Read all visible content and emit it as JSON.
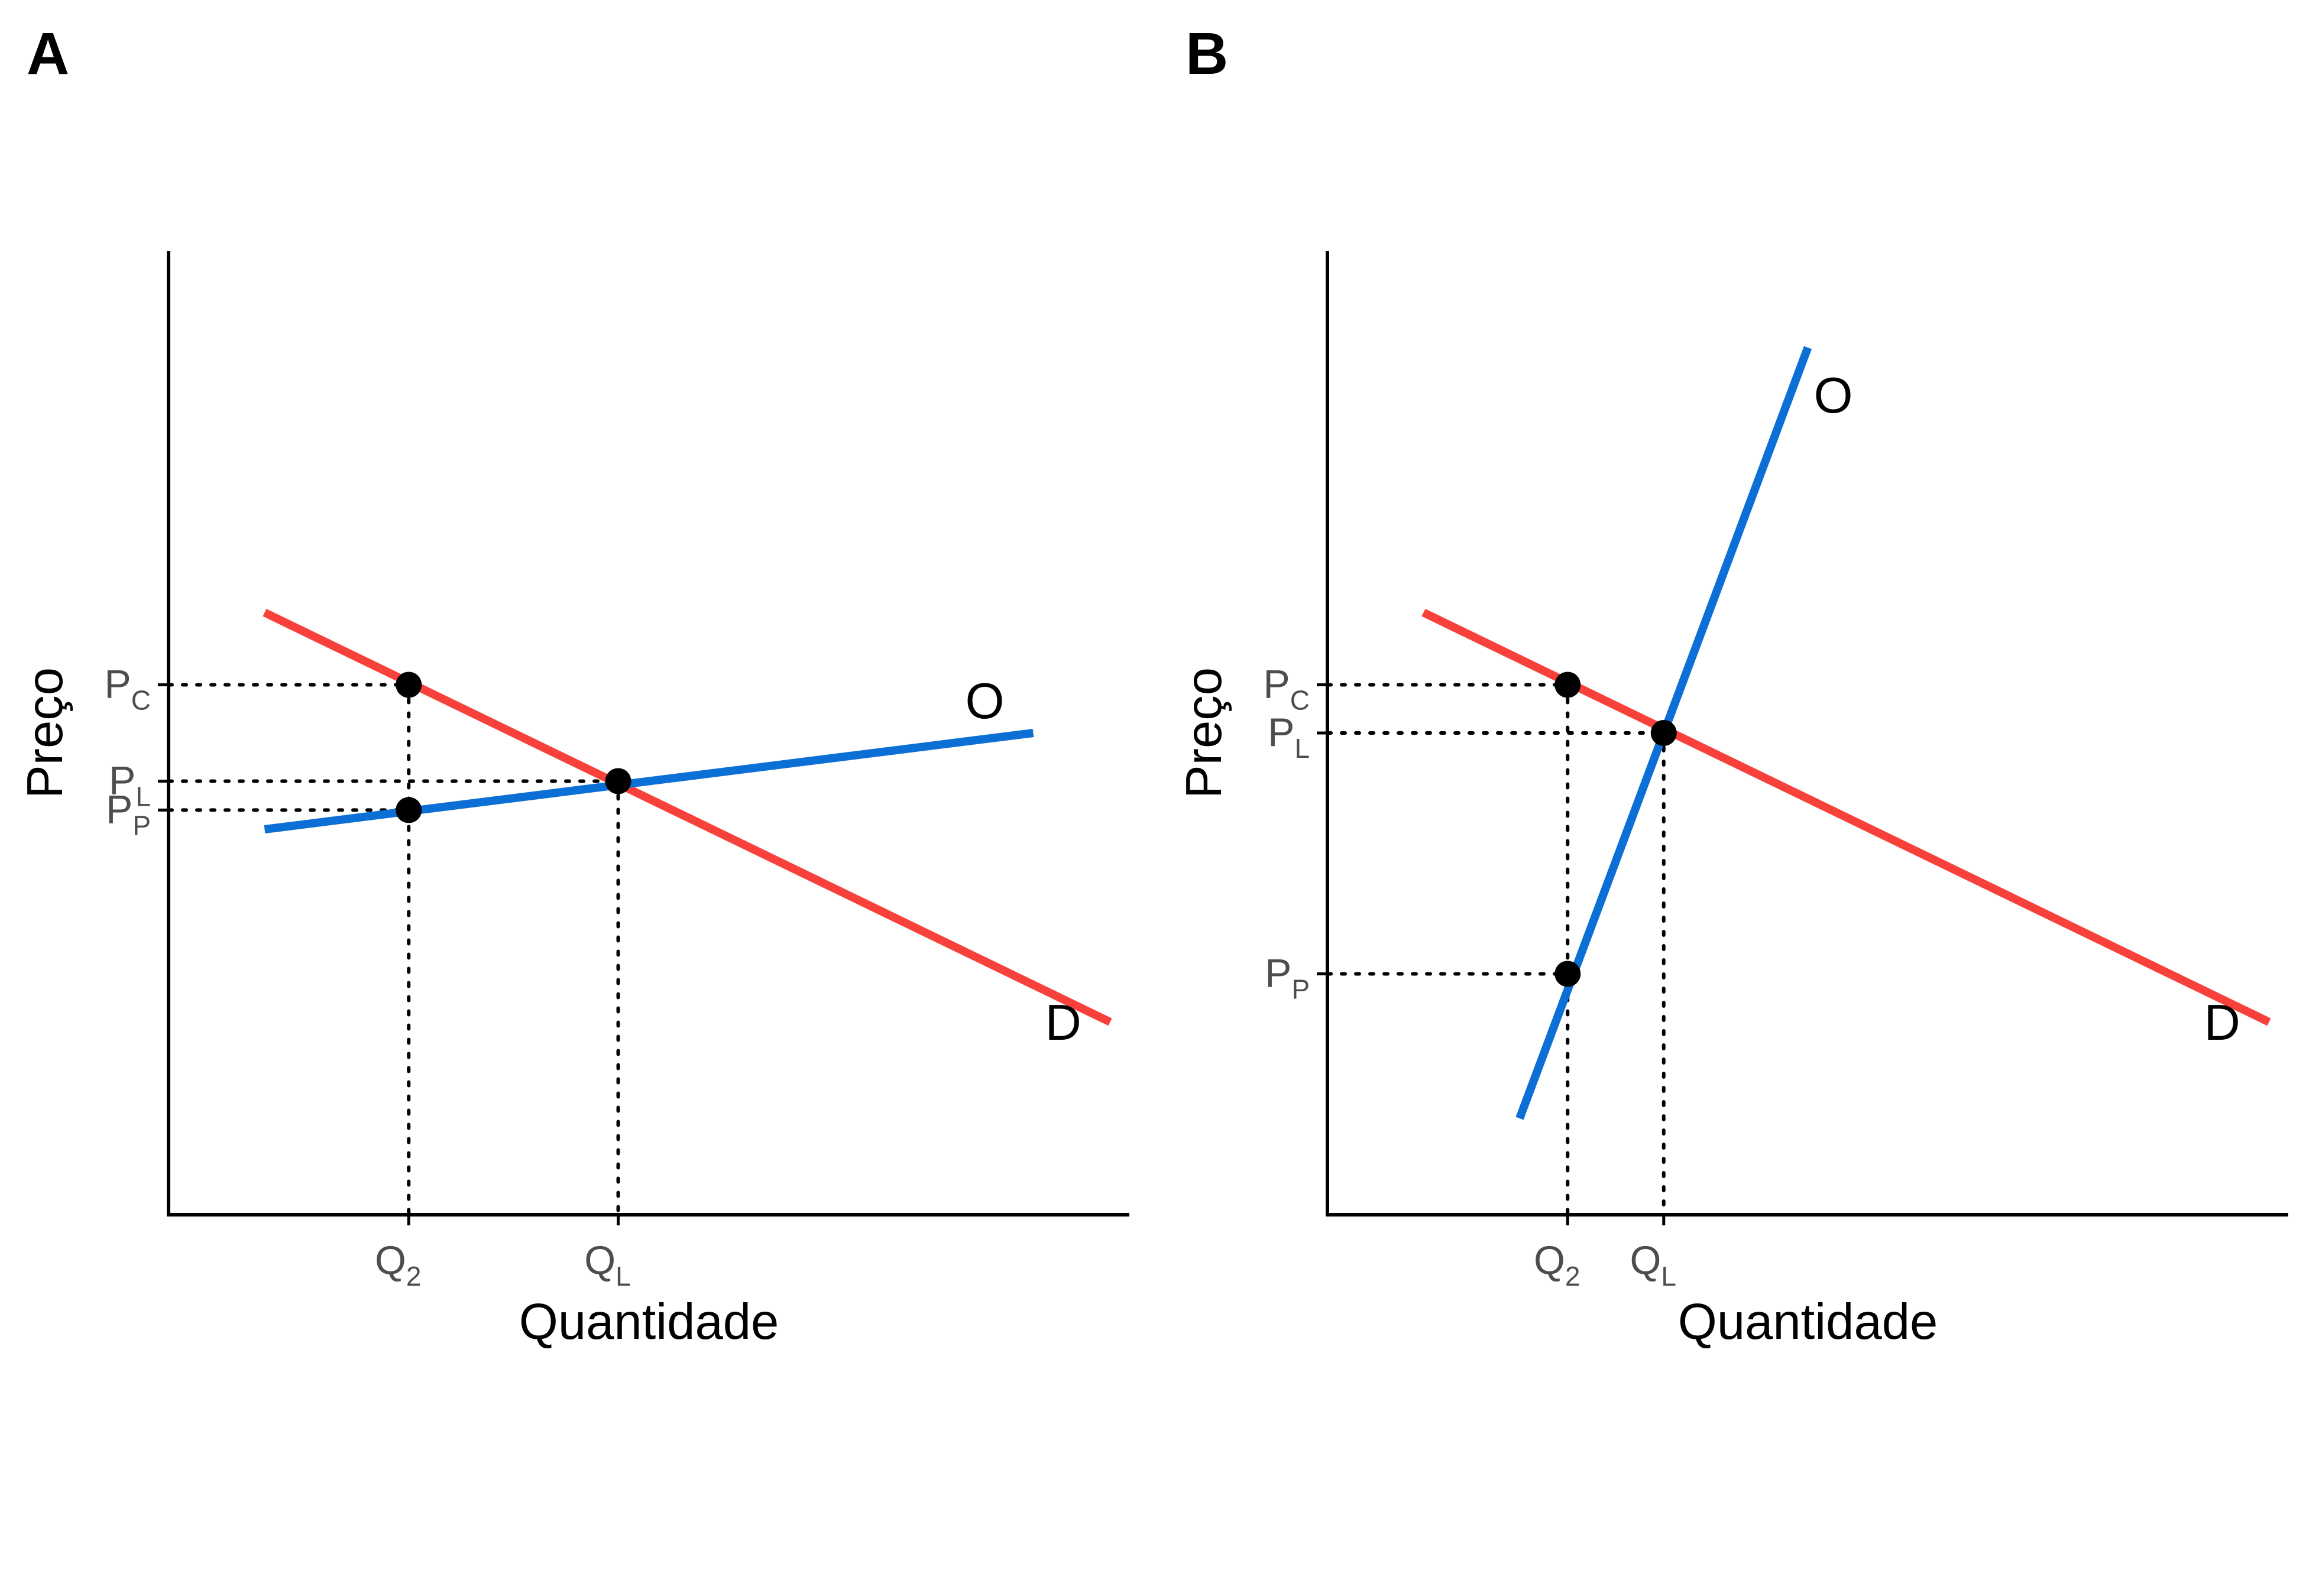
{
  "colors": {
    "demand": "#f8413a",
    "supply": "#0b6fd6",
    "axis": "#000000",
    "guide": "#000000",
    "point": "#000000"
  },
  "chart_data": [
    {
      "panel": "A",
      "type": "line",
      "xlabel": "Quantidade",
      "ylabel": "Preço",
      "xlim": [
        0,
        10
      ],
      "ylim": [
        0,
        10
      ],
      "grid": false,
      "series": [
        {
          "name": "D",
          "role": "demand",
          "x": [
            1.0,
            9.8
          ],
          "y": [
            6.25,
            2.0
          ]
        },
        {
          "name": "O",
          "role": "supply",
          "x": [
            1.0,
            9.0
          ],
          "y": [
            4.0,
            5.0
          ]
        }
      ],
      "points": [
        {
          "x": 2.5,
          "y": 5.5
        },
        {
          "x": 4.68,
          "y": 4.5
        },
        {
          "x": 2.5,
          "y": 4.2
        }
      ],
      "x_ticks": [
        {
          "value": 2.5,
          "label": "Q",
          "sub": "2"
        },
        {
          "value": 4.68,
          "label": "Q",
          "sub": "L"
        }
      ],
      "y_ticks": [
        {
          "value": 5.5,
          "label": "P",
          "sub": "C"
        },
        {
          "value": 4.5,
          "label": "P",
          "sub": "L"
        },
        {
          "value": 4.2,
          "label": "P",
          "sub": "P"
        }
      ],
      "guides": [
        {
          "from": [
            0,
            5.5
          ],
          "to": [
            2.5,
            5.5
          ]
        },
        {
          "from": [
            2.5,
            5.5
          ],
          "to": [
            2.5,
            0
          ]
        },
        {
          "from": [
            0,
            4.5
          ],
          "to": [
            4.68,
            4.5
          ]
        },
        {
          "from": [
            4.68,
            4.5
          ],
          "to": [
            4.68,
            0
          ]
        },
        {
          "from": [
            0,
            4.2
          ],
          "to": [
            2.5,
            4.2
          ]
        }
      ]
    },
    {
      "panel": "B",
      "type": "line",
      "xlabel": "Quantidade",
      "ylabel": "Preço",
      "xlim": [
        0,
        10
      ],
      "ylim": [
        0,
        10
      ],
      "grid": false,
      "series": [
        {
          "name": "D",
          "role": "demand",
          "x": [
            1.0,
            9.8
          ],
          "y": [
            6.25,
            2.0
          ]
        },
        {
          "name": "O",
          "role": "supply",
          "x": [
            2.0,
            5.0
          ],
          "y": [
            1.0,
            9.0
          ]
        }
      ],
      "points": [
        {
          "x": 2.5,
          "y": 5.5
        },
        {
          "x": 3.5,
          "y": 5.0
        },
        {
          "x": 2.5,
          "y": 2.5
        }
      ],
      "x_ticks": [
        {
          "value": 2.5,
          "label": "Q",
          "sub": "2"
        },
        {
          "value": 3.5,
          "label": "Q",
          "sub": "L"
        }
      ],
      "y_ticks": [
        {
          "value": 5.5,
          "label": "P",
          "sub": "C"
        },
        {
          "value": 5.0,
          "label": "P",
          "sub": "L"
        },
        {
          "value": 2.5,
          "label": "P",
          "sub": "P"
        }
      ],
      "guides": [
        {
          "from": [
            0,
            5.5
          ],
          "to": [
            2.5,
            5.5
          ]
        },
        {
          "from": [
            2.5,
            5.5
          ],
          "to": [
            2.5,
            0
          ]
        },
        {
          "from": [
            0,
            5.0
          ],
          "to": [
            3.5,
            5.0
          ]
        },
        {
          "from": [
            3.5,
            5.0
          ],
          "to": [
            3.5,
            0
          ]
        },
        {
          "from": [
            0,
            2.5
          ],
          "to": [
            2.5,
            2.5
          ]
        }
      ]
    }
  ]
}
